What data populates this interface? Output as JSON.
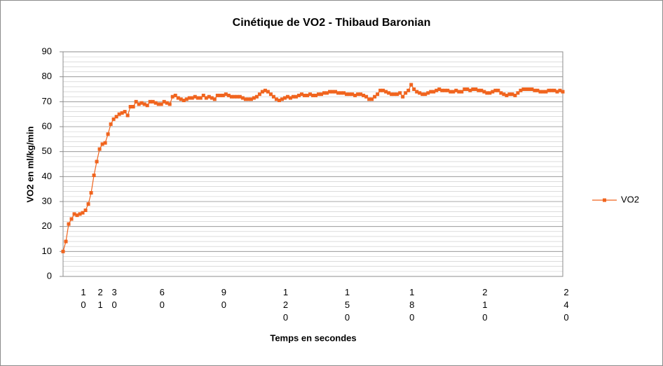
{
  "chart_data": {
    "type": "line",
    "title": "Cinétique de VO2 - Thibaud Baronian",
    "x_label": "Temps en secondes",
    "y_label": "VO2 en ml/kg/min",
    "categories": [
      null,
      null,
      null,
      null,
      null,
      null,
      "10",
      null,
      null,
      null,
      null,
      null,
      "21",
      null,
      null,
      null,
      null,
      "30",
      null,
      null,
      null,
      null,
      null,
      null,
      null,
      null,
      null,
      null,
      null,
      null,
      null,
      null,
      null,
      null,
      "60",
      null,
      null,
      null,
      null,
      null,
      null,
      null,
      null,
      null,
      null,
      null,
      null,
      null,
      null,
      null,
      null,
      null,
      null,
      null,
      null,
      null,
      "90",
      null,
      null,
      null,
      null,
      null,
      null,
      null,
      null,
      null,
      null,
      null,
      null,
      null,
      null,
      null,
      null,
      null,
      null,
      null,
      null,
      null,
      "120",
      null,
      null,
      null,
      null,
      null,
      null,
      null,
      null,
      null,
      null,
      null,
      null,
      null,
      null,
      null,
      null,
      null,
      null,
      null,
      null,
      null,
      "150",
      null,
      null,
      null,
      null,
      null,
      null,
      null,
      null,
      null,
      null,
      null,
      null,
      null,
      null,
      null,
      null,
      null,
      null,
      null,
      null,
      null,
      null,
      "180",
      null,
      null,
      null,
      null,
      null,
      null,
      null,
      null,
      null,
      null,
      null,
      null,
      null,
      null,
      null,
      null,
      null,
      null,
      null,
      null,
      null,
      null,
      null,
      null,
      null,
      "210",
      null,
      null,
      null,
      null,
      null,
      null,
      null,
      null,
      null,
      null,
      null,
      null,
      null,
      null,
      null,
      null,
      null,
      null,
      null,
      null,
      null,
      null,
      null,
      null,
      null,
      null,
      null,
      null,
      "240"
    ],
    "series": [
      {
        "name": "VO2",
        "color": "#f0641e",
        "values": [
          10,
          14,
          21,
          23,
          25,
          24.5,
          25,
          25.5,
          26.5,
          29,
          33.5,
          40.5,
          46,
          51,
          53,
          53.5,
          57,
          61,
          63,
          64,
          65,
          65.5,
          66,
          64.5,
          68,
          68,
          70,
          69,
          69.5,
          69,
          68.5,
          70,
          70,
          69.5,
          69,
          69,
          70,
          69.5,
          69,
          72,
          72.5,
          71.5,
          71,
          70.5,
          71,
          71.5,
          71.5,
          72,
          71.5,
          71.5,
          72.5,
          71.5,
          72,
          71.5,
          71,
          72.5,
          72.5,
          72.5,
          73,
          72.5,
          72,
          72,
          72,
          72,
          71.5,
          71,
          71,
          71,
          71.5,
          72,
          73,
          74,
          74.5,
          74,
          73,
          72,
          71,
          70.5,
          71,
          71.5,
          72,
          71.5,
          72,
          72,
          72.5,
          73,
          72.5,
          72.5,
          73,
          72.5,
          72.5,
          73,
          73,
          73.5,
          73.5,
          74,
          74,
          74,
          73.5,
          73.5,
          73.5,
          73,
          73,
          73,
          72.5,
          73,
          73,
          72.5,
          72,
          71,
          71,
          72,
          73,
          74.5,
          74.5,
          74,
          73.5,
          73,
          73,
          73,
          73.5,
          72,
          73.5,
          74.5,
          76.8,
          75,
          74,
          73.5,
          73,
          73,
          73.5,
          74,
          74,
          74.5,
          75,
          74.5,
          74.5,
          74.5,
          74,
          74,
          74.5,
          74,
          74,
          75,
          75,
          74.5,
          75,
          75,
          74.5,
          74.5,
          74,
          73.5,
          73.5,
          74,
          74.5,
          74.5,
          73.5,
          73,
          72.5,
          73,
          73,
          72.5,
          73.5,
          74.5,
          75,
          75,
          75,
          75,
          74.5,
          74.5,
          74,
          74,
          74,
          74.5,
          74.5,
          74.5,
          74,
          74.5,
          74
        ]
      }
    ],
    "ylim": [
      0,
      90
    ],
    "yticks": [
      0,
      10,
      20,
      30,
      40,
      50,
      60,
      70,
      80,
      90
    ],
    "grid": true,
    "legend": "right"
  }
}
